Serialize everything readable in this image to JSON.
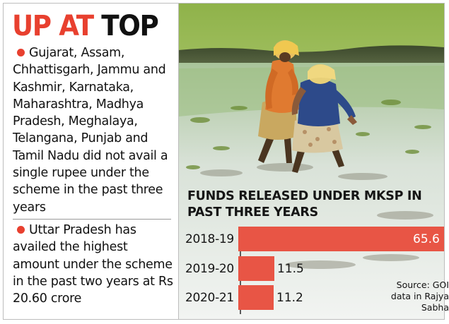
{
  "headline": {
    "part1": "UP AT",
    "part2": "TOP"
  },
  "points": [
    "Gujarat, Assam, Chhattisgarh, Jammu and Kashmir, Karnataka, Maharashtra, Madhya Pradesh, Meghalaya, Telangana, Punjab and Tamil Nadu did not avail a single rupee under the scheme in the past three years",
    "Uttar Pradesh has availed the highest amount under the scheme in the past two years at Rs 20.60 crore"
  ],
  "colors": {
    "accent": "#e8402f",
    "bar": "#e85545"
  },
  "chart_data": {
    "type": "bar",
    "orientation": "horizontal",
    "title_line1": "FUNDS RELEASED UNDER MKSP IN",
    "title_line2": "PAST THREE YEARS",
    "categories": [
      "2018-19",
      "2019-20",
      "2020-21"
    ],
    "values": [
      65.6,
      11.5,
      11.2
    ],
    "value_labels": [
      "65.6",
      "11.5",
      "11.2"
    ],
    "xlim": [
      0,
      65.6
    ],
    "grid": false,
    "source_line1": "Source: GOI",
    "source_line2": "data in Rajya",
    "source_line3": "Sabha"
  }
}
